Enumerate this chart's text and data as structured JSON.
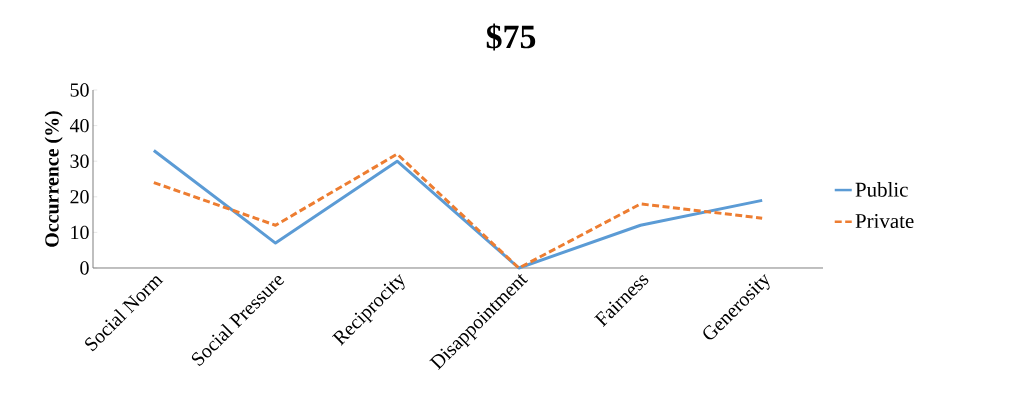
{
  "chart_data": {
    "type": "line",
    "title": "$75",
    "ylabel": "Occurrence (%)",
    "categories": [
      "Social Norm",
      "Social Pressure",
      "Reciprocity",
      "Disappointment",
      "Fairness",
      "Generosity"
    ],
    "series": [
      {
        "name": "Public",
        "color": "#5b9bd5",
        "values": [
          33,
          7,
          30,
          0,
          12,
          19
        ],
        "line_style": "solid"
      },
      {
        "name": "Private",
        "color": "#ed7d31",
        "values": [
          24,
          12,
          32,
          0,
          18,
          14
        ],
        "line_style": "dashed"
      }
    ],
    "ylim": [
      0,
      50
    ],
    "yticks": [
      0,
      10,
      20,
      30,
      40,
      50
    ],
    "grid": false,
    "legend": "right",
    "marker": "none"
  }
}
